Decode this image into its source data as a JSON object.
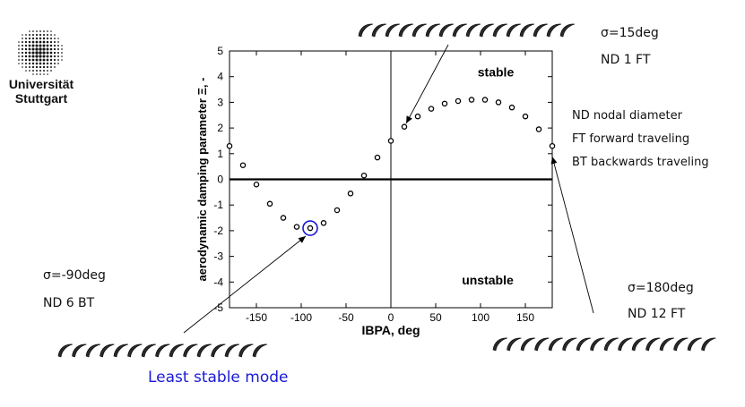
{
  "branding": {
    "logo_lines": [
      "Universität",
      "Stuttgart"
    ]
  },
  "annotations": {
    "top_right": {
      "sigma": "σ=15deg",
      "mode": "ND 1 FT"
    },
    "left": {
      "sigma": "σ=-90deg",
      "mode": "ND 6 BT"
    },
    "right": {
      "sigma": "σ=180deg",
      "mode": "ND 12 FT"
    },
    "least_stable": "Least stable mode",
    "legend": [
      "ND nodal diameter",
      "FT forward traveling",
      "BT backwards traveling"
    ]
  },
  "colors": {
    "least_stable": "#1a1ad6",
    "circle_highlight": "#1a1ad6",
    "axis": "#000000"
  },
  "chart_data": {
    "type": "scatter",
    "xlabel": "IBPA, deg",
    "ylabel": "aerodynamic damping parameter Ξ, -",
    "xlim": [
      -180,
      180
    ],
    "ylim": [
      -5,
      5
    ],
    "xticks": [
      -150,
      -100,
      -50,
      0,
      50,
      100,
      150
    ],
    "yticks": [
      -5,
      -4,
      -3,
      -2,
      -1,
      0,
      1,
      2,
      3,
      4,
      5
    ],
    "region_labels": {
      "top": "stable",
      "bottom": "unstable"
    },
    "highlight_x": -90,
    "series": [
      {
        "x": [
          -180,
          -165,
          -150,
          -135,
          -120,
          -105,
          -90,
          -75,
          -60,
          -45,
          -30,
          -15,
          0,
          15,
          30,
          45,
          60,
          75,
          90,
          105,
          120,
          135,
          150,
          165,
          180
        ],
        "y": [
          1.3,
          0.55,
          -0.2,
          -0.95,
          -1.5,
          -1.85,
          -1.9,
          -1.7,
          -1.2,
          -0.55,
          0.15,
          0.85,
          1.5,
          2.05,
          2.45,
          2.75,
          2.95,
          3.05,
          3.1,
          3.1,
          3.0,
          2.8,
          2.45,
          1.95,
          1.3
        ]
      }
    ]
  }
}
